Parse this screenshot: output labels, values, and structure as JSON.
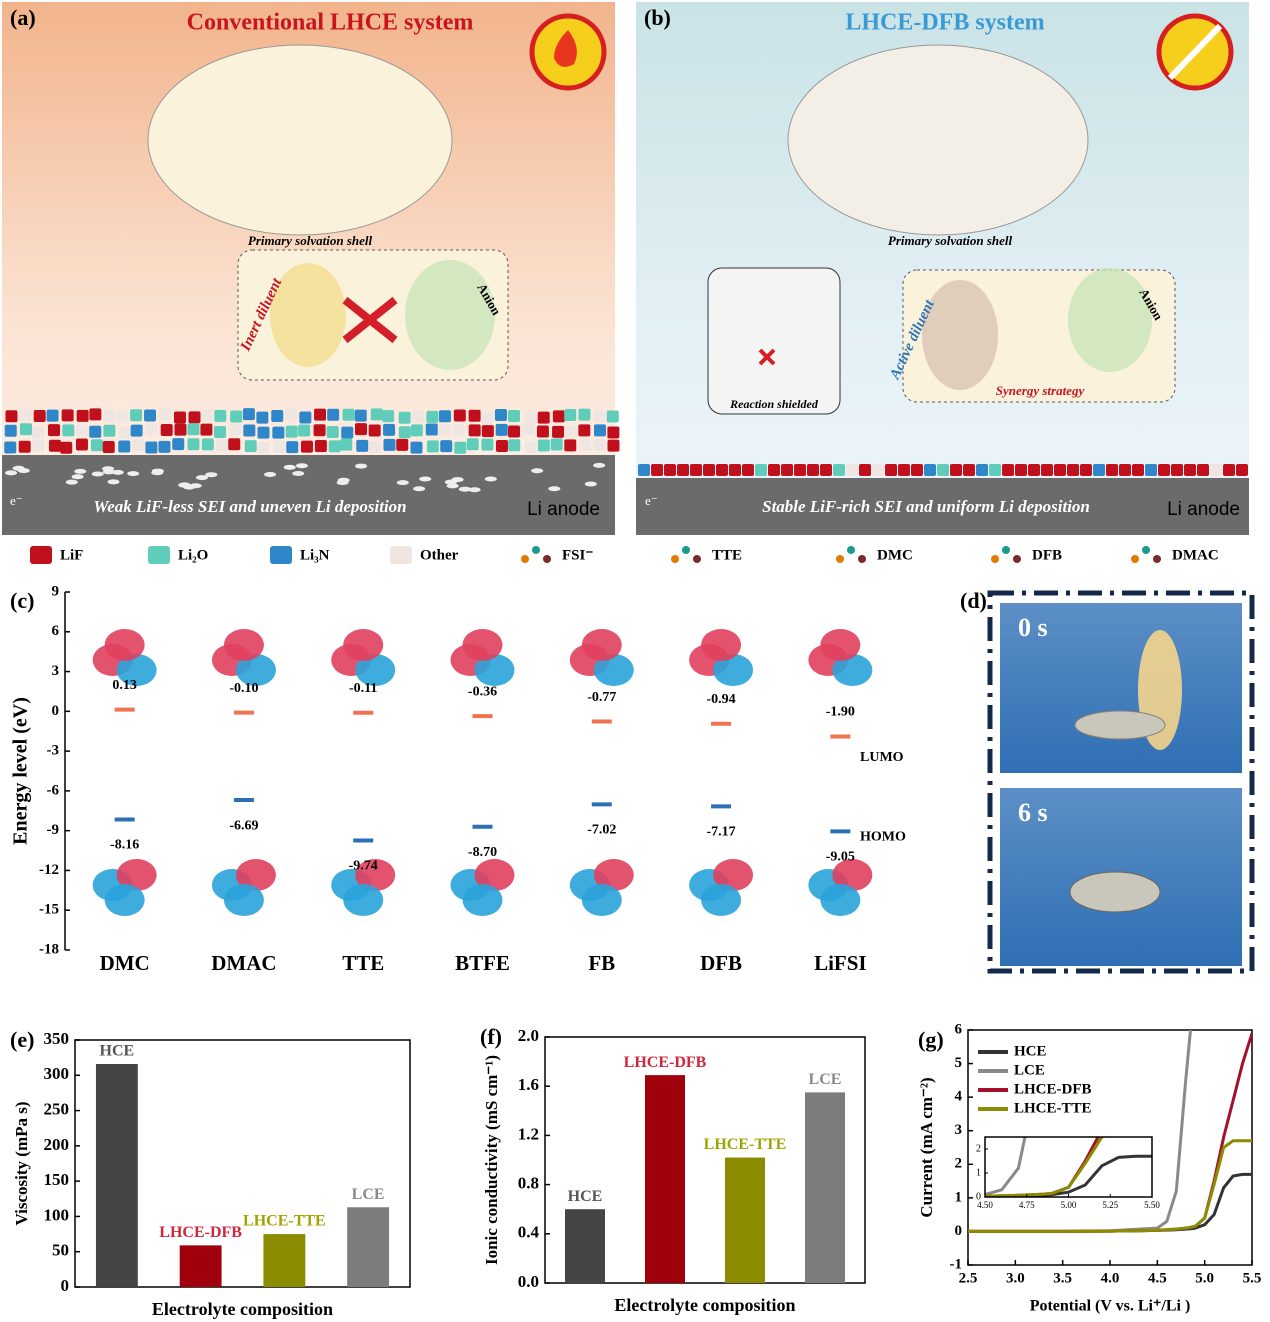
{
  "panels": {
    "a": {
      "label": "(a)",
      "title": "Conventional LHCE system",
      "shell": "Primary solvation shell",
      "diluent": "Inert diluent",
      "anion": "Anion",
      "caption": "Weak LiF-less SEI and uneven Li deposition",
      "anode": "Li anode",
      "electron": "e⁻"
    },
    "b": {
      "label": "(b)",
      "title": "LHCE-DFB system",
      "shell": "Primary solvation shell",
      "diluent": "Active diluent",
      "anion": "Anion",
      "shielded": "Reaction shielded",
      "synergy": "Synergy strategy",
      "caption": "Stable LiF-rich SEI and uniform Li deposition",
      "anode": "Li anode",
      "electron": "e⁻"
    },
    "d": {
      "label": "(d)",
      "times": [
        "0 s",
        "6 s"
      ]
    }
  },
  "legend": [
    "LiF",
    "Li₂O",
    "Li₃N",
    "Other",
    "FSI⁻",
    "TTE",
    "DMC",
    "DFB",
    "DMAC"
  ],
  "chart_data": [
    {
      "type": "level",
      "label": "(c)",
      "ylabel": "Energy level (eV)",
      "categories": [
        "DMC",
        "DMAC",
        "TTE",
        "BTFE",
        "FB",
        "DFB",
        "LiFSI"
      ],
      "series": [
        {
          "name": "LUMO",
          "color": "#f2714e",
          "values": [
            0.13,
            -0.1,
            -0.11,
            -0.36,
            -0.77,
            -0.94,
            -1.9
          ],
          "value_labels": [
            "0.13",
            "-0.10",
            "-0.11",
            "-0.36",
            "-0.77",
            "-0.94",
            "-1.90"
          ]
        },
        {
          "name": "HOMO",
          "color": "#2b6fb5",
          "values": [
            -8.16,
            -6.69,
            -9.74,
            -8.7,
            -7.02,
            -7.17,
            -9.05
          ],
          "value_labels": [
            "-8.16",
            "-6.69",
            "-9.74",
            "-8.70",
            "-7.02",
            "-7.17",
            "-9.05"
          ]
        }
      ],
      "ylim": [
        -18,
        9
      ],
      "yticks": [
        -18,
        -15,
        -12,
        -9,
        -6,
        -3,
        0,
        3,
        6,
        9
      ]
    },
    {
      "type": "bar",
      "label": "(e)",
      "ylabel": "Viscosity (mPa s)",
      "xlabel": "Electrolyte composition",
      "categories": [
        "HCE",
        "LHCE-DFB",
        "LHCE-TTE",
        "LCE"
      ],
      "values": [
        316,
        59,
        75,
        113
      ],
      "colors": [
        "#454545",
        "#a0000c",
        "#8c8c00",
        "#7c7c7c"
      ],
      "label_colors": [
        "#555555",
        "#d2243a",
        "#a3a300",
        "#8a8a8a"
      ],
      "ylim": [
        0,
        350
      ],
      "yticks": [
        0,
        50,
        100,
        150,
        200,
        250,
        300,
        350
      ]
    },
    {
      "type": "bar",
      "label": "(f)",
      "ylabel": "Ionic conductivity (mS cm⁻¹)",
      "xlabel": "Electrolyte composition",
      "categories": [
        "HCE",
        "LHCE-DFB",
        "LHCE-TTE",
        "LCE"
      ],
      "values": [
        0.6,
        1.69,
        1.02,
        1.55
      ],
      "colors": [
        "#454545",
        "#a0000c",
        "#8c8c00",
        "#7c7c7c"
      ],
      "label_colors": [
        "#555555",
        "#d2243a",
        "#a3a300",
        "#8a8a8a"
      ],
      "ylim": [
        0,
        2.0
      ],
      "yticks": [
        {
          "value": 0,
          "label": "0.0"
        },
        0.4,
        0.8,
        1.2,
        1.6,
        {
          "value": 2,
          "label": "2.0"
        }
      ]
    },
    {
      "type": "line",
      "label": "(g)",
      "ylabel": "Current (mA cm⁻²)",
      "xlabel": "Potential (V vs. Li⁺/Li )",
      "x": [
        2.5,
        3.0,
        3.5,
        4.0,
        4.5,
        4.6,
        4.7,
        4.8,
        4.85,
        4.9,
        5.0,
        5.1,
        5.2,
        5.3,
        5.4,
        5.5
      ],
      "series": [
        {
          "name": "HCE",
          "color": "#333333",
          "values": [
            0,
            0,
            0,
            0.01,
            0.03,
            0.04,
            0.05,
            0.07,
            0.08,
            0.1,
            0.2,
            0.5,
            1.3,
            1.65,
            1.7,
            1.7
          ]
        },
        {
          "name": "LCE",
          "color": "#8a8a8a",
          "values": [
            0,
            0,
            0,
            0.02,
            0.1,
            0.3,
            1.2,
            4.5,
            6,
            null,
            null,
            null,
            null,
            null,
            null,
            null
          ]
        },
        {
          "name": "LHCE-DFB",
          "color": "#a3102e",
          "values": [
            0,
            0,
            0,
            0.01,
            0.03,
            0.05,
            0.07,
            0.1,
            0.12,
            0.15,
            0.4,
            1.5,
            2.8,
            3.9,
            5.0,
            5.9
          ]
        },
        {
          "name": "LHCE-TTE",
          "color": "#8c8c00",
          "values": [
            0,
            0,
            0,
            0.01,
            0.03,
            0.05,
            0.07,
            0.1,
            0.12,
            0.15,
            0.4,
            1.4,
            2.5,
            2.7,
            2.7,
            2.7
          ]
        }
      ],
      "xlim": [
        2.5,
        5.5
      ],
      "xticks": [
        2.5,
        {
          "value": 3,
          "label": "3.0"
        },
        3.5,
        {
          "value": 4,
          "label": "4.0"
        },
        4.5,
        {
          "value": 5,
          "label": "5.0"
        },
        5.5
      ],
      "ylim": [
        -1,
        6
      ],
      "yticks": [
        -1,
        0,
        1,
        2,
        3,
        4,
        5,
        6
      ],
      "inset": {
        "xlim": [
          4.5,
          5.5
        ],
        "xticks": [
          {
            "value": 4.5,
            "label": "4.50"
          },
          {
            "value": 4.75,
            "label": "4.75"
          },
          {
            "value": 5,
            "label": "5.00"
          },
          {
            "value": 5.25,
            "label": "5.25"
          },
          {
            "value": 5.5,
            "label": "5.50"
          }
        ],
        "ylim": [
          0,
          2.5
        ],
        "yticks": [
          0,
          1,
          2
        ]
      }
    }
  ]
}
